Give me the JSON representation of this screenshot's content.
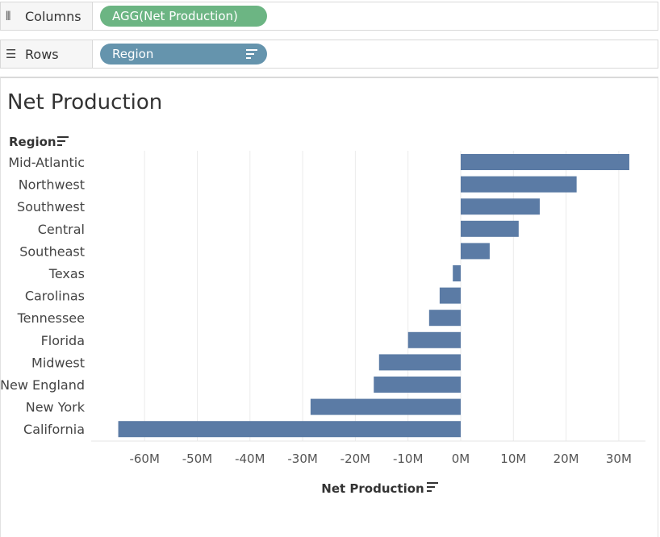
{
  "shelves": {
    "columns": {
      "label": "Columns",
      "pill": "AGG(Net Production)"
    },
    "rows": {
      "label": "Rows",
      "pill": "Region"
    }
  },
  "colors": {
    "bar": "#5b7ba5",
    "columns_pill": "#6cb583",
    "rows_pill": "#6594ad",
    "grid": "#ebebeb"
  },
  "chart_data": {
    "type": "bar",
    "orientation": "horizontal",
    "title": "Net Production",
    "ylabel": "Region",
    "xlabel": "Net Production",
    "categories": [
      "Mid-Atlantic",
      "Northwest",
      "Southwest",
      "Central",
      "Southeast",
      "Texas",
      "Carolinas",
      "Tennessee",
      "Florida",
      "Midwest",
      "New England",
      "New York",
      "California"
    ],
    "values": [
      32,
      22,
      15,
      11,
      5.5,
      -1.5,
      -4,
      -6,
      -10,
      -15.5,
      -16.5,
      -28.5,
      -65
    ],
    "unit": "M",
    "xlim": [
      -68,
      33
    ],
    "xticks": [
      -60,
      -50,
      -40,
      -30,
      -20,
      -10,
      0,
      10,
      20,
      30
    ],
    "xtick_labels": [
      "-60M",
      "-50M",
      "-40M",
      "-30M",
      "-20M",
      "-10M",
      "0M",
      "10M",
      "20M",
      "30M"
    ],
    "grid": true
  }
}
